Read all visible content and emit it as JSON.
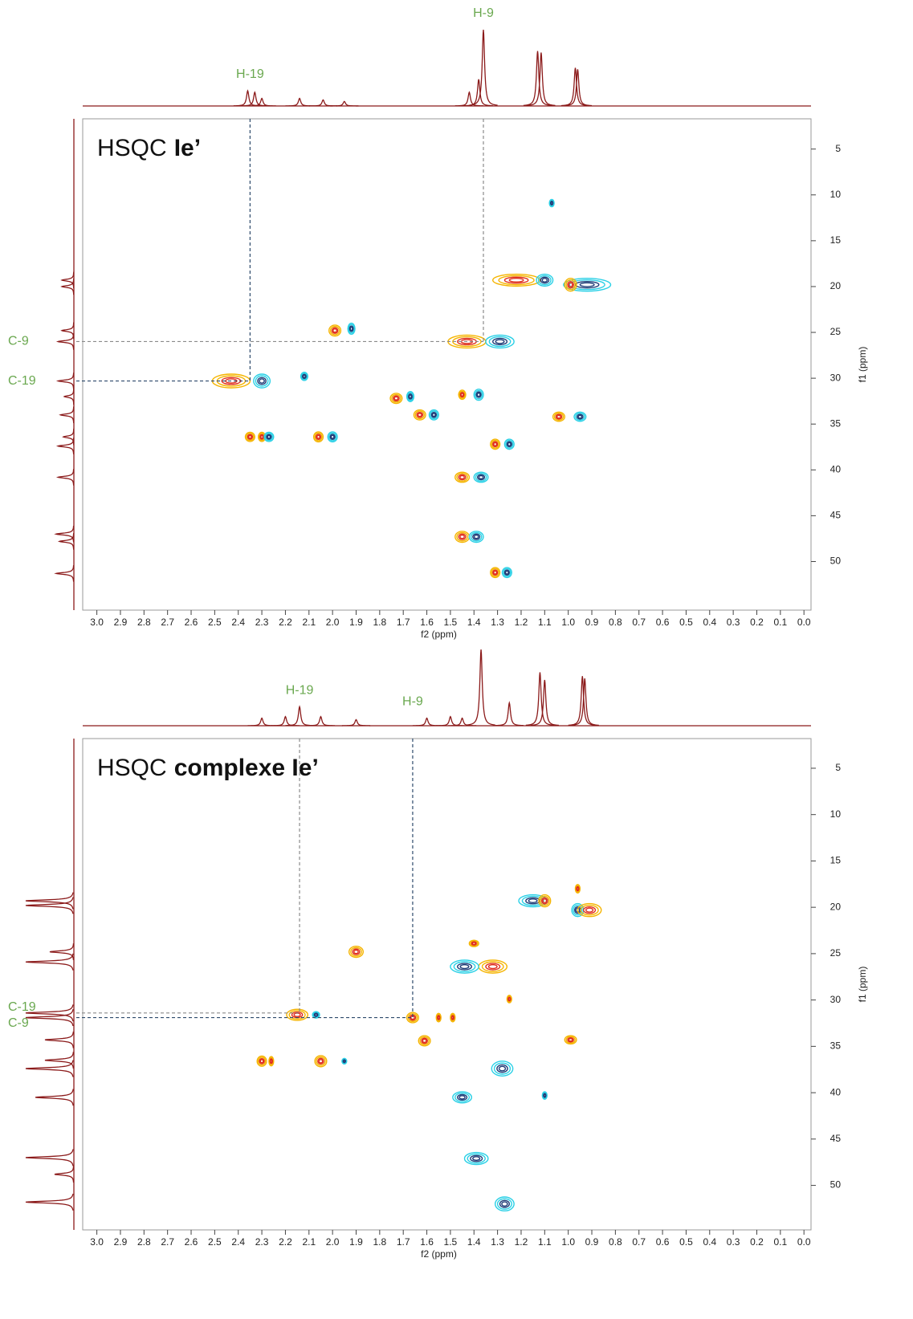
{
  "chart_data": [
    {
      "type": "hsqc",
      "title": "HSQC",
      "title_bold": "Ie’",
      "x_label": "f2 (ppm)",
      "y_label": "f1 (ppm)",
      "xlim": [
        3.06,
        -0.03
      ],
      "ylim": [
        1.7,
        55.3
      ],
      "xticks": [
        {
          "value": 3,
          "label": "3.0"
        },
        2.9,
        2.8,
        2.7,
        2.6,
        2.5,
        2.4,
        2.3,
        2.2,
        2.1,
        {
          "value": 2,
          "label": "2.0"
        },
        1.9,
        1.8,
        1.7,
        1.6,
        1.5,
        1.4,
        1.3,
        1.2,
        1.1,
        {
          "value": 1,
          "label": "1.0"
        },
        0.9,
        0.8,
        0.7,
        0.6,
        0.5,
        0.4,
        0.3,
        0.2,
        0.1,
        {
          "value": 0,
          "label": "0.0"
        }
      ],
      "yticks": [
        5,
        10,
        15,
        20,
        25,
        30,
        35,
        40,
        45,
        50
      ],
      "contour_colors": {
        "positive": [
          "#f5b400",
          "#e0301e"
        ],
        "negative": [
          "#2ad0e6",
          "#1f3d78"
        ]
      },
      "projection_color": "#8b1a1a",
      "peaks": [
        {
          "x": 1.22,
          "y": 19.3,
          "sign": "positive",
          "wx": 0.2,
          "wy": 1.3
        },
        {
          "x": 1.1,
          "y": 19.3,
          "sign": "negative",
          "wx": 0.07,
          "wy": 1.3
        },
        {
          "x": 0.92,
          "y": 19.8,
          "sign": "negative",
          "wx": 0.2,
          "wy": 1.4
        },
        {
          "x": 0.99,
          "y": 19.8,
          "sign": "positive",
          "wx": 0.05,
          "wy": 1.4
        },
        {
          "x": 1.07,
          "y": 10.9,
          "sign": "negative",
          "wx": 0.02,
          "wy": 0.8
        },
        {
          "x": 1.43,
          "y": 26,
          "sign": "positive",
          "wx": 0.16,
          "wy": 1.4
        },
        {
          "x": 1.29,
          "y": 26,
          "sign": "negative",
          "wx": 0.12,
          "wy": 1.4
        },
        {
          "x": 1.99,
          "y": 24.8,
          "sign": "positive",
          "wx": 0.05,
          "wy": 1.2
        },
        {
          "x": 1.92,
          "y": 24.6,
          "sign": "negative",
          "wx": 0.03,
          "wy": 1.2
        },
        {
          "x": 2.43,
          "y": 30.3,
          "sign": "positive",
          "wx": 0.16,
          "wy": 1.5
        },
        {
          "x": 2.3,
          "y": 30.3,
          "sign": "negative",
          "wx": 0.07,
          "wy": 1.5
        },
        {
          "x": 2.12,
          "y": 29.8,
          "sign": "negative",
          "wx": 0.03,
          "wy": 0.9
        },
        {
          "x": 1.73,
          "y": 32.2,
          "sign": "positive",
          "wx": 0.05,
          "wy": 1.1
        },
        {
          "x": 1.67,
          "y": 32,
          "sign": "negative",
          "wx": 0.03,
          "wy": 1.1
        },
        {
          "x": 1.63,
          "y": 34,
          "sign": "positive",
          "wx": 0.05,
          "wy": 1.1
        },
        {
          "x": 1.57,
          "y": 34,
          "sign": "negative",
          "wx": 0.04,
          "wy": 1.1
        },
        {
          "x": 1.45,
          "y": 31.8,
          "sign": "positive",
          "wx": 0.03,
          "wy": 1.0
        },
        {
          "x": 1.38,
          "y": 31.8,
          "sign": "negative",
          "wx": 0.04,
          "wy": 1.2
        },
        {
          "x": 1.04,
          "y": 34.2,
          "sign": "positive",
          "wx": 0.05,
          "wy": 1.0
        },
        {
          "x": 0.95,
          "y": 34.2,
          "sign": "negative",
          "wx": 0.05,
          "wy": 1.0
        },
        {
          "x": 2.35,
          "y": 36.4,
          "sign": "positive",
          "wx": 0.04,
          "wy": 1.0
        },
        {
          "x": 2.3,
          "y": 36.4,
          "sign": "positive",
          "wx": 0.03,
          "wy": 1.0
        },
        {
          "x": 2.27,
          "y": 36.4,
          "sign": "negative",
          "wx": 0.04,
          "wy": 1.0
        },
        {
          "x": 2.06,
          "y": 36.4,
          "sign": "positive",
          "wx": 0.04,
          "wy": 1.1
        },
        {
          "x": 2.0,
          "y": 36.4,
          "sign": "negative",
          "wx": 0.04,
          "wy": 1.1
        },
        {
          "x": 1.31,
          "y": 37.2,
          "sign": "positive",
          "wx": 0.04,
          "wy": 1.1
        },
        {
          "x": 1.25,
          "y": 37.2,
          "sign": "negative",
          "wx": 0.04,
          "wy": 1.1
        },
        {
          "x": 1.45,
          "y": 40.8,
          "sign": "positive",
          "wx": 0.06,
          "wy": 1.1
        },
        {
          "x": 1.37,
          "y": 40.8,
          "sign": "negative",
          "wx": 0.06,
          "wy": 1.1
        },
        {
          "x": 1.45,
          "y": 47.3,
          "sign": "positive",
          "wx": 0.06,
          "wy": 1.2
        },
        {
          "x": 1.39,
          "y": 47.3,
          "sign": "negative",
          "wx": 0.06,
          "wy": 1.2
        },
        {
          "x": 1.31,
          "y": 51.2,
          "sign": "positive",
          "wx": 0.04,
          "wy": 1.1
        },
        {
          "x": 1.26,
          "y": 51.2,
          "sign": "negative",
          "wx": 0.04,
          "wy": 1.1
        }
      ],
      "f2_projection": [
        {
          "ppm": 2.36,
          "height": 20
        },
        {
          "ppm": 2.33,
          "height": 18
        },
        {
          "ppm": 2.3,
          "height": 10
        },
        {
          "ppm": 2.14,
          "height": 10
        },
        {
          "ppm": 2.04,
          "height": 8
        },
        {
          "ppm": 1.95,
          "height": 6
        },
        {
          "ppm": 1.42,
          "height": 18
        },
        {
          "ppm": 1.38,
          "height": 35
        },
        {
          "ppm": 1.36,
          "height": 100
        },
        {
          "ppm": 1.13,
          "height": 72
        },
        {
          "ppm": 1.115,
          "height": 70
        },
        {
          "ppm": 0.97,
          "height": 50
        },
        {
          "ppm": 0.96,
          "height": 48
        }
      ],
      "f1_projection": [
        {
          "ppm": 19.3,
          "height": 25
        },
        {
          "ppm": 20,
          "height": 25
        },
        {
          "ppm": 24.8,
          "height": 25
        },
        {
          "ppm": 26,
          "height": 33
        },
        {
          "ppm": 30.3,
          "height": 33
        },
        {
          "ppm": 32,
          "height": 20
        },
        {
          "ppm": 34,
          "height": 28
        },
        {
          "ppm": 36.4,
          "height": 22
        },
        {
          "ppm": 37.4,
          "height": 33
        },
        {
          "ppm": 40.8,
          "height": 33
        },
        {
          "ppm": 47,
          "height": 37
        },
        {
          "ppm": 47.8,
          "height": 30
        },
        {
          "ppm": 51.3,
          "height": 37
        }
      ],
      "crosshairs": [
        {
          "h_label": "H-19",
          "c_label": "C-19",
          "x": 2.35,
          "y": 30.3,
          "color": "#2d4a6b"
        },
        {
          "h_label": "H-9",
          "c_label": "C-9",
          "x": 1.36,
          "y": 26,
          "color": "#8a8a8a"
        }
      ]
    },
    {
      "type": "hsqc",
      "title": "HSQC",
      "title_bold": "complexe Ie’",
      "x_label": "f2 (ppm)",
      "y_label": "f1 (ppm)",
      "xlim": [
        3.06,
        -0.03
      ],
      "ylim": [
        1.8,
        54.8
      ],
      "xticks": [
        {
          "value": 3,
          "label": "3.0"
        },
        2.9,
        2.8,
        2.7,
        2.6,
        2.5,
        2.4,
        2.3,
        2.2,
        2.1,
        {
          "value": 2,
          "label": "2.0"
        },
        1.9,
        1.8,
        1.7,
        1.6,
        1.5,
        1.4,
        1.3,
        1.2,
        1.1,
        {
          "value": 1,
          "label": "1.0"
        },
        0.9,
        0.8,
        0.7,
        0.6,
        0.5,
        0.4,
        0.3,
        0.2,
        0.1,
        {
          "value": 0,
          "label": "0.0"
        }
      ],
      "yticks": [
        5,
        10,
        15,
        20,
        25,
        30,
        35,
        40,
        45,
        50
      ],
      "contour_colors": {
        "positive": [
          "#f5b400",
          "#e0301e"
        ],
        "negative": [
          "#2ad0e6",
          "#1f3d78"
        ]
      },
      "projection_color": "#8b1a1a",
      "peaks": [
        {
          "x": 1.15,
          "y": 19.3,
          "sign": "negative",
          "wx": 0.12,
          "wy": 1.3
        },
        {
          "x": 1.1,
          "y": 19.3,
          "sign": "positive",
          "wx": 0.05,
          "wy": 1.3
        },
        {
          "x": 0.96,
          "y": 20.3,
          "sign": "negative",
          "wx": 0.05,
          "wy": 1.4
        },
        {
          "x": 0.91,
          "y": 20.3,
          "sign": "positive",
          "wx": 0.1,
          "wy": 1.4
        },
        {
          "x": 0.96,
          "y": 18,
          "sign": "positive",
          "wx": 0.02,
          "wy": 0.9
        },
        {
          "x": 1.9,
          "y": 24.8,
          "sign": "positive",
          "wx": 0.06,
          "wy": 1.2
        },
        {
          "x": 1.32,
          "y": 26.4,
          "sign": "positive",
          "wx": 0.12,
          "wy": 1.4
        },
        {
          "x": 1.44,
          "y": 26.4,
          "sign": "negative",
          "wx": 0.12,
          "wy": 1.4
        },
        {
          "x": 1.4,
          "y": 23.9,
          "sign": "positive",
          "wx": 0.04,
          "wy": 0.7
        },
        {
          "x": 2.15,
          "y": 31.6,
          "sign": "positive",
          "wx": 0.09,
          "wy": 1.2
        },
        {
          "x": 2.07,
          "y": 31.6,
          "sign": "negative",
          "wx": 0.03,
          "wy": 0.7
        },
        {
          "x": 1.66,
          "y": 31.9,
          "sign": "positive",
          "wx": 0.05,
          "wy": 1.1
        },
        {
          "x": 1.55,
          "y": 31.9,
          "sign": "positive",
          "wx": 0.02,
          "wy": 0.9
        },
        {
          "x": 1.49,
          "y": 31.9,
          "sign": "positive",
          "wx": 0.02,
          "wy": 0.9
        },
        {
          "x": 1.61,
          "y": 34.4,
          "sign": "positive",
          "wx": 0.05,
          "wy": 1.1
        },
        {
          "x": 1.25,
          "y": 29.9,
          "sign": "positive",
          "wx": 0.02,
          "wy": 0.8
        },
        {
          "x": 0.99,
          "y": 34.3,
          "sign": "positive",
          "wx": 0.05,
          "wy": 0.9
        },
        {
          "x": 2.3,
          "y": 36.6,
          "sign": "positive",
          "wx": 0.04,
          "wy": 1.1
        },
        {
          "x": 2.26,
          "y": 36.6,
          "sign": "positive",
          "wx": 0.02,
          "wy": 1.0
        },
        {
          "x": 2.05,
          "y": 36.6,
          "sign": "positive",
          "wx": 0.05,
          "wy": 1.2
        },
        {
          "x": 1.95,
          "y": 36.6,
          "sign": "negative",
          "wx": 0.02,
          "wy": 0.6
        },
        {
          "x": 1.28,
          "y": 37.4,
          "sign": "negative",
          "wx": 0.09,
          "wy": 1.6
        },
        {
          "x": 1.45,
          "y": 40.5,
          "sign": "negative",
          "wx": 0.08,
          "wy": 1.2
        },
        {
          "x": 1.1,
          "y": 40.3,
          "sign": "negative",
          "wx": 0.02,
          "wy": 0.8
        },
        {
          "x": 1.39,
          "y": 47.1,
          "sign": "negative",
          "wx": 0.1,
          "wy": 1.3
        },
        {
          "x": 1.27,
          "y": 52,
          "sign": "negative",
          "wx": 0.08,
          "wy": 1.5
        }
      ],
      "f2_projection": [
        {
          "ppm": 2.3,
          "height": 10
        },
        {
          "ppm": 2.2,
          "height": 12
        },
        {
          "ppm": 2.14,
          "height": 25
        },
        {
          "ppm": 2.05,
          "height": 12
        },
        {
          "ppm": 1.9,
          "height": 8
        },
        {
          "ppm": 1.6,
          "height": 10
        },
        {
          "ppm": 1.5,
          "height": 12
        },
        {
          "ppm": 1.45,
          "height": 10
        },
        {
          "ppm": 1.37,
          "height": 100
        },
        {
          "ppm": 1.25,
          "height": 30
        },
        {
          "ppm": 1.12,
          "height": 70
        },
        {
          "ppm": 1.1,
          "height": 60
        },
        {
          "ppm": 0.94,
          "height": 65
        },
        {
          "ppm": 0.93,
          "height": 62
        }
      ],
      "f1_projection": [
        {
          "ppm": 19.3,
          "height": 100
        },
        {
          "ppm": 19.8,
          "height": 100
        },
        {
          "ppm": 24.8,
          "height": 50
        },
        {
          "ppm": 25.9,
          "height": 100
        },
        {
          "ppm": 31.4,
          "height": 100
        },
        {
          "ppm": 31.9,
          "height": 100
        },
        {
          "ppm": 34.3,
          "height": 60
        },
        {
          "ppm": 36.5,
          "height": 60
        },
        {
          "ppm": 37.4,
          "height": 100
        },
        {
          "ppm": 40.5,
          "height": 80
        },
        {
          "ppm": 47,
          "height": 100
        },
        {
          "ppm": 48.8,
          "height": 40
        },
        {
          "ppm": 51.8,
          "height": 100
        }
      ],
      "crosshairs": [
        {
          "h_label": "H-19",
          "c_label": "C-19",
          "x": 2.14,
          "y": 31.4,
          "color": "#8a8a8a"
        },
        {
          "h_label": "H-9",
          "c_label": "C-9",
          "x": 1.66,
          "y": 31.9,
          "color": "#2d4a6b"
        }
      ]
    }
  ]
}
